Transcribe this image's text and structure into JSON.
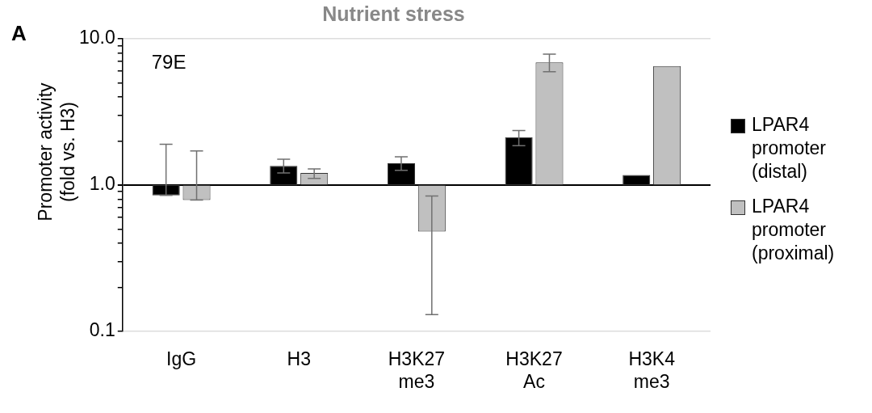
{
  "chart_data": {
    "type": "bar",
    "title": "Nutrient stress",
    "ylabel": "Promoter activity (fold vs. H3)",
    "annotations": [
      "A",
      "79E"
    ],
    "categories": [
      "IgG",
      "H3",
      "H3K27 me3",
      "H3K27 Ac",
      "H3K4 me3"
    ],
    "series": [
      {
        "name": "LPAR4 promoter (distal)",
        "color": "#000000",
        "base": [
          1,
          1,
          1,
          1,
          1
        ],
        "values": [
          -0.15,
          0.35,
          0.41,
          1.12,
          0.17
        ],
        "errors": [
          [
            0.85,
            1.9
          ],
          [
            1.21,
            1.5
          ],
          [
            1.26,
            1.56
          ],
          [
            1.86,
            2.36
          ],
          null
        ]
      },
      {
        "name": "LPAR4 promoter (proximal)",
        "color": "#c0c0c0",
        "base": [
          1,
          1,
          1,
          1,
          1
        ],
        "values": [
          -0.21,
          0.21,
          -0.52,
          5.9,
          5.5
        ],
        "errors": [
          [
            0.79,
            1.71
          ],
          [
            1.11,
            1.29
          ],
          [
            0.13,
            0.84
          ],
          [
            5.96,
            7.86
          ],
          null
        ]
      }
    ],
    "log": true,
    "ylim": [
      0.1,
      10
    ],
    "yticks": [
      {
        "value": 0.1,
        "label": "0.1"
      },
      {
        "value": 0.2,
        "label": null
      },
      {
        "value": 0.3,
        "label": null
      },
      {
        "value": 0.4,
        "label": null
      },
      {
        "value": 0.5,
        "label": null
      },
      {
        "value": 0.6,
        "label": null
      },
      {
        "value": 0.7,
        "label": null
      },
      {
        "value": 0.8,
        "label": null
      },
      {
        "value": 0.9,
        "label": null
      },
      {
        "value": 1,
        "label": "1.0"
      },
      {
        "value": 2,
        "label": null
      },
      {
        "value": 3,
        "label": null
      },
      {
        "value": 4,
        "label": null
      },
      {
        "value": 5,
        "label": null
      },
      {
        "value": 6,
        "label": null
      },
      {
        "value": 7,
        "label": null
      },
      {
        "value": 8,
        "label": null
      },
      {
        "value": 9,
        "label": null
      },
      {
        "value": 10,
        "label": "10.0"
      }
    ],
    "grid": "y",
    "legend": "right"
  }
}
